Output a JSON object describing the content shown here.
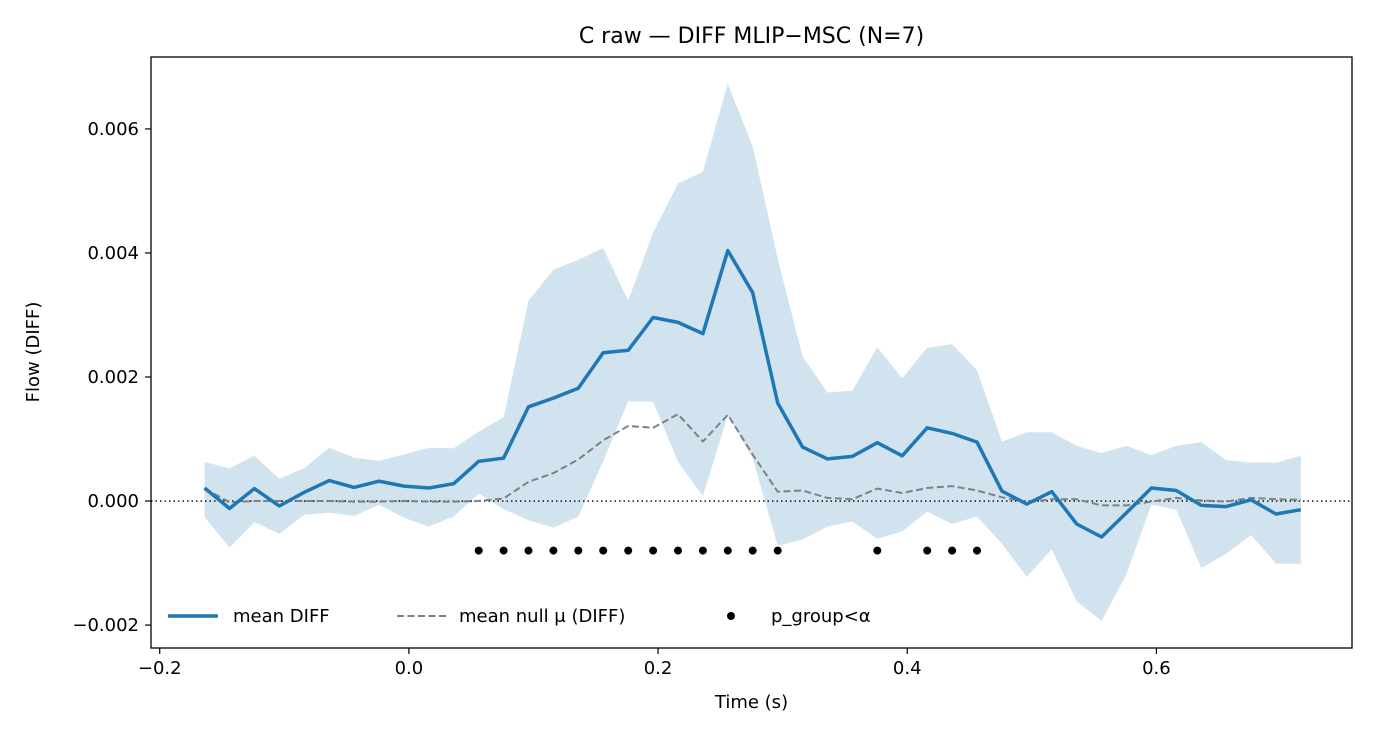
{
  "chart_data": {
    "type": "line",
    "title": "C raw — DIFF MLIP−MSC (N=7)",
    "xlabel": "Time (s)",
    "ylabel": "Flow (DIFF)",
    "xlim": [
      -0.207,
      0.757
    ],
    "ylim": [
      -0.00237,
      0.00716
    ],
    "x_ticks": [
      -0.2,
      0.0,
      0.2,
      0.4,
      0.6
    ],
    "x_tick_labels": [
      "−0.2",
      "0.0",
      "0.2",
      "0.4",
      "0.6"
    ],
    "y_ticks": [
      -0.002,
      0.0,
      0.002,
      0.004,
      0.006
    ],
    "y_tick_labels": [
      "−0.002",
      "0.000",
      "0.002",
      "0.004",
      "0.006"
    ],
    "grid": false,
    "legend_position": "lower-left",
    "zero_line": {
      "y": 0,
      "style": "dotted",
      "color": "#000000"
    },
    "x": [
      -0.164,
      -0.144,
      -0.124,
      -0.104,
      -0.084,
      -0.064,
      -0.044,
      -0.024,
      -0.004,
      0.016,
      0.036,
      0.056,
      0.076,
      0.096,
      0.116,
      0.136,
      0.156,
      0.176,
      0.196,
      0.216,
      0.236,
      0.256,
      0.276,
      0.296,
      0.316,
      0.336,
      0.356,
      0.376,
      0.396,
      0.416,
      0.436,
      0.456,
      0.476,
      0.496,
      0.516,
      0.536,
      0.556,
      0.576,
      0.596,
      0.616,
      0.636,
      0.656,
      0.676,
      0.696,
      0.716
    ],
    "series": [
      {
        "name": "mean DIFF",
        "style": "solid",
        "color": "#1f77b4",
        "values": [
          0.00021,
          -0.00012,
          0.0002,
          -8e-05,
          0.00014,
          0.00033,
          0.00022,
          0.00032,
          0.00024,
          0.00021,
          0.00028,
          0.00064,
          0.00069,
          0.00152,
          0.00166,
          0.00182,
          0.00239,
          0.00243,
          0.00296,
          0.00288,
          0.0027,
          0.00404,
          0.00336,
          0.00158,
          0.00087,
          0.00068,
          0.00072,
          0.00094,
          0.00073,
          0.00118,
          0.00109,
          0.00095,
          0.00016,
          -5e-05,
          0.00015,
          -0.00037,
          -0.00058,
          -0.00019,
          0.00021,
          0.00017,
          -7e-05,
          -9e-05,
          2e-05,
          -0.00021,
          -0.00014
        ]
      },
      {
        "name": "mean null μ (DIFF)",
        "style": "dashed",
        "color": "#808080",
        "values": [
          0.0002,
          -2e-05,
          0.0,
          0.0,
          0.0,
          0.0,
          -1e-05,
          -1e-05,
          0.0,
          -1e-05,
          -1e-05,
          0.0,
          4e-05,
          0.00031,
          0.00045,
          0.00067,
          0.00098,
          0.00121,
          0.00118,
          0.0014,
          0.00096,
          0.00139,
          0.00075,
          0.00015,
          0.00017,
          5e-05,
          3e-05,
          0.0002,
          0.00013,
          0.00021,
          0.00024,
          0.00017,
          6e-05,
          -2e-05,
          3e-05,
          3e-05,
          -7e-05,
          -7e-05,
          -1e-05,
          5e-05,
          1e-05,
          -1e-05,
          5e-05,
          3e-05,
          2e-05
        ]
      }
    ],
    "band": {
      "color": "#d2e3f0",
      "upper": [
        0.00063,
        0.00053,
        0.00073,
        0.00036,
        0.00053,
        0.00086,
        0.0007,
        0.00065,
        0.00075,
        0.00086,
        0.00085,
        0.00112,
        0.00135,
        0.00323,
        0.00373,
        0.00389,
        0.00408,
        0.00323,
        0.00433,
        0.00512,
        0.00531,
        0.00673,
        0.00572,
        0.00391,
        0.00233,
        0.00175,
        0.00178,
        0.00248,
        0.00198,
        0.00247,
        0.00253,
        0.00211,
        0.00096,
        0.00111,
        0.00111,
        0.00089,
        0.00077,
        0.00089,
        0.00074,
        0.00089,
        0.00095,
        0.00066,
        0.00062,
        0.00062,
        0.00073
      ],
      "lower": [
        -0.00026,
        -0.00075,
        -0.00034,
        -0.00053,
        -0.00022,
        -0.00019,
        -0.00024,
        -6e-05,
        -0.00027,
        -0.00041,
        -0.00025,
        0.00012,
        -0.00013,
        -0.00031,
        -0.00043,
        -0.00025,
        0.00064,
        0.00161,
        0.0016,
        0.00063,
        8e-05,
        0.00138,
        0.00069,
        -0.00072,
        -0.00062,
        -0.00041,
        -0.00033,
        -0.00061,
        -0.00049,
        -0.00017,
        -0.00037,
        -0.00025,
        -0.00069,
        -0.00122,
        -0.00078,
        -0.00162,
        -0.00193,
        -0.00118,
        -6e-05,
        -0.00014,
        -0.00108,
        -0.00085,
        -0.00055,
        -0.00101,
        -0.00101
      ]
    },
    "significance": {
      "name": "p_group<α",
      "color": "#000000",
      "y": -0.0008,
      "x": [
        0.056,
        0.076,
        0.096,
        0.116,
        0.136,
        0.156,
        0.176,
        0.196,
        0.216,
        0.236,
        0.256,
        0.276,
        0.296,
        0.376,
        0.416,
        0.436,
        0.456
      ]
    },
    "legend": [
      {
        "label": "mean DIFF",
        "kind": "solid",
        "color": "#1f77b4"
      },
      {
        "label": "mean null μ (DIFF)",
        "kind": "dashed",
        "color": "#808080"
      },
      {
        "label": "p_group<α",
        "kind": "dot",
        "color": "#000000"
      }
    ]
  }
}
